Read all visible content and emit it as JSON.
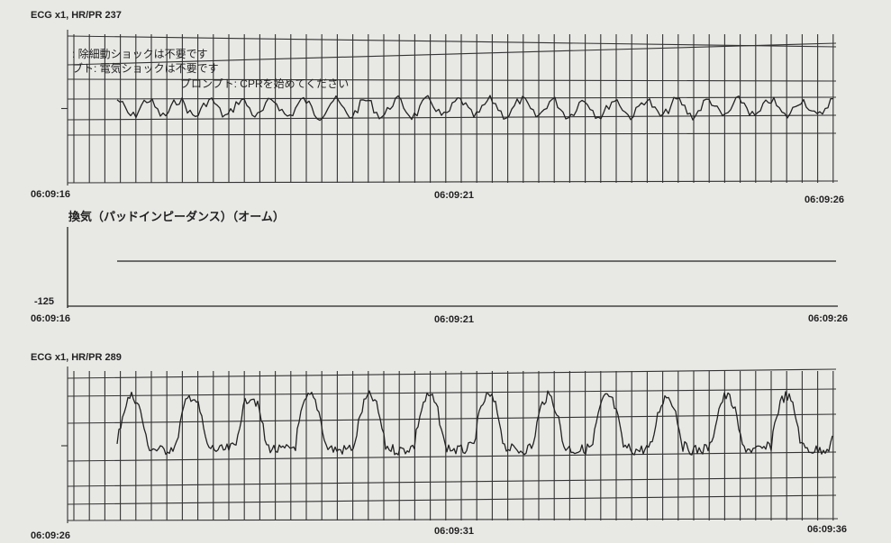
{
  "strips": [
    {
      "label": "ECG x1, HR/PR 237",
      "annotations": [
        ": 除細動ショックは不要です",
        "ブト: 電気ショックは不要です",
        "プロンプト: CPRを始めてください"
      ],
      "times": [
        "06:09:16",
        "06:09:21",
        "06:09:26"
      ]
    },
    {
      "label": "換気（パッドインピーダンス）（オーム）",
      "axis_label": "-125",
      "times": [
        "06:09:16",
        "06:09:21",
        "06:09:26"
      ]
    },
    {
      "label": "ECG x1, HR/PR 289",
      "times": [
        "06:09:26",
        "06:09:31",
        "06:09:36"
      ]
    }
  ]
}
